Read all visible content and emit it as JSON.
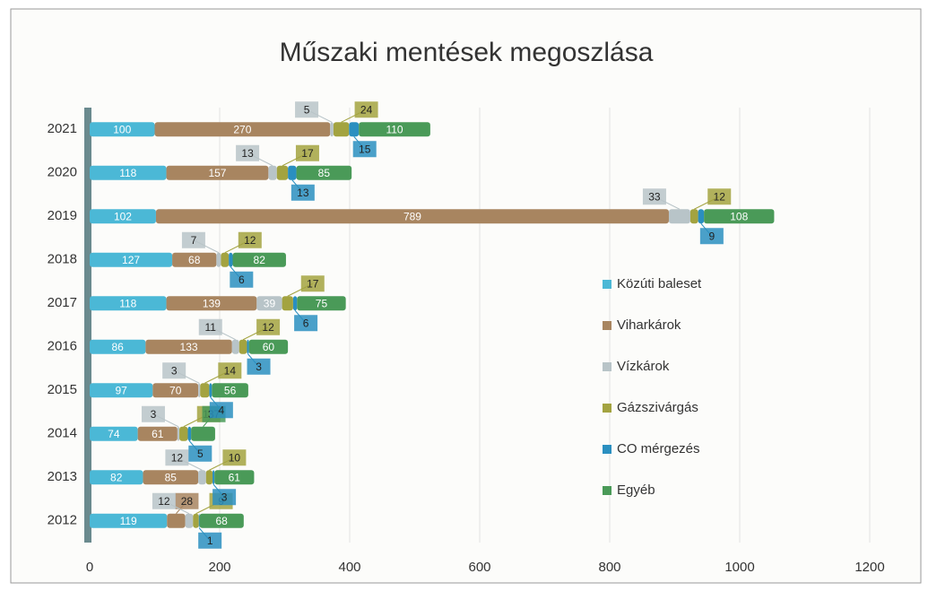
{
  "chart_data": {
    "type": "stacked-bar-horizontal",
    "title": "Műszaki mentések megoszlása",
    "categories": [
      "2012",
      "2013",
      "2014",
      "2015",
      "2016",
      "2017",
      "2018",
      "2019",
      "2020",
      "2021"
    ],
    "series": [
      {
        "name": "Közúti baleset",
        "color": "#4bb8d6",
        "values": [
          119,
          82,
          74,
          97,
          86,
          118,
          127,
          102,
          118,
          100
        ]
      },
      {
        "name": "Viharkárok",
        "color": "#a88560",
        "values": [
          28,
          85,
          61,
          70,
          133,
          139,
          68,
          789,
          157,
          270
        ]
      },
      {
        "name": "Vízkárok",
        "color": "#b8c4c8",
        "values": [
          12,
          12,
          3,
          3,
          11,
          39,
          7,
          33,
          13,
          5
        ]
      },
      {
        "name": "Gázszivárgás",
        "color": "#a3a340",
        "values": [
          9,
          10,
          13,
          14,
          12,
          17,
          12,
          12,
          17,
          24
        ]
      },
      {
        "name": "CO mérgezés",
        "color": "#2a8fc0",
        "values": [
          1,
          3,
          5,
          4,
          3,
          6,
          6,
          9,
          13,
          15
        ]
      },
      {
        "name": "Egyéb",
        "color": "#4a9a58",
        "values": [
          68,
          61,
          37,
          56,
          60,
          75,
          82,
          108,
          85,
          110
        ]
      }
    ],
    "xlim": [
      0,
      1200
    ],
    "xticks": [
      0,
      200,
      400,
      600,
      800,
      1000,
      1200
    ],
    "grid": true,
    "legend": "right"
  }
}
